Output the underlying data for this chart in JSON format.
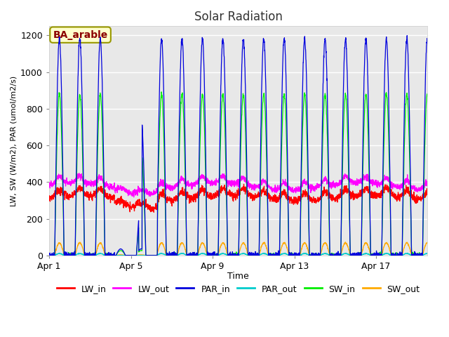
{
  "title": "Solar Radiation",
  "xlabel": "Time",
  "ylabel": "LW, SW (W/m2), PAR (umol/m2/s)",
  "ylim": [
    0,
    1250
  ],
  "yticks": [
    0,
    200,
    400,
    600,
    800,
    1000,
    1200
  ],
  "fig_bg_color": "#ffffff",
  "plot_bg_color": "#e8e8e8",
  "annotation_text": "BA_arable",
  "annotation_fg": "#8B0000",
  "annotation_bg": "#ffffcc",
  "series_colors": {
    "LW_in": "#ff0000",
    "LW_out": "#ff00ff",
    "PAR_in": "#0000dd",
    "PAR_out": "#00cccc",
    "SW_in": "#00ee00",
    "SW_out": "#ffaa00"
  },
  "x_tick_labels": [
    "Apr 1",
    "Apr 5",
    "Apr 9",
    "Apr 13",
    "Apr 17"
  ],
  "x_tick_positions": [
    0,
    4,
    8,
    12,
    16
  ],
  "total_days": 18.5
}
